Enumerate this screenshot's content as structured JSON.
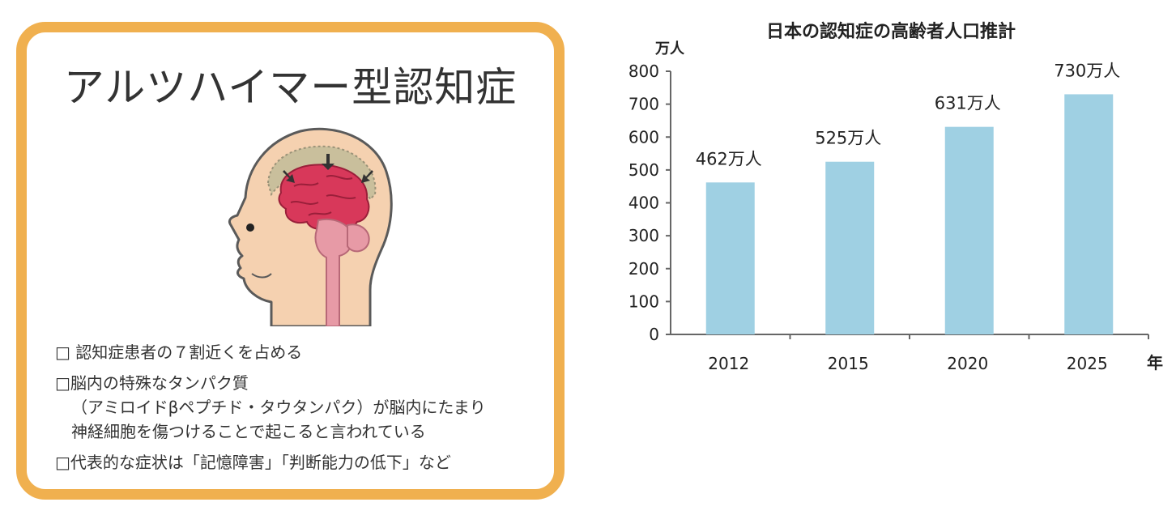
{
  "card": {
    "title": "アルツハイマー型認知症",
    "bullets": [
      "□ 認知症患者の７割近くを占める",
      "□脳内の特殊なタンパク質",
      "（アミロイドβペプチド・タウタンパク）が脳内にたまり",
      "神経細胞を傷つけることで起こると言われている",
      "□代表的な症状は「記憶障害」「判断能力の低下」など"
    ]
  },
  "colors": {
    "card_border": "#f0b04f",
    "bar": "#9fd0e3",
    "brain": "#d8385a",
    "skin": "#f5d1b0"
  },
  "chart_data": {
    "type": "bar",
    "title": "日本の認知症の高齢者人口推計",
    "ylabel": "万人",
    "xlabel": "年",
    "categories": [
      "2012",
      "2015",
      "2020",
      "2025"
    ],
    "values": [
      462,
      525,
      631,
      730
    ],
    "data_labels": [
      "462万人",
      "525万人",
      "631万人",
      "730万人"
    ],
    "ylim": [
      0,
      800
    ],
    "yticks": [
      0,
      100,
      200,
      300,
      400,
      500,
      600,
      700,
      800
    ],
    "grid": false,
    "legend": false
  }
}
